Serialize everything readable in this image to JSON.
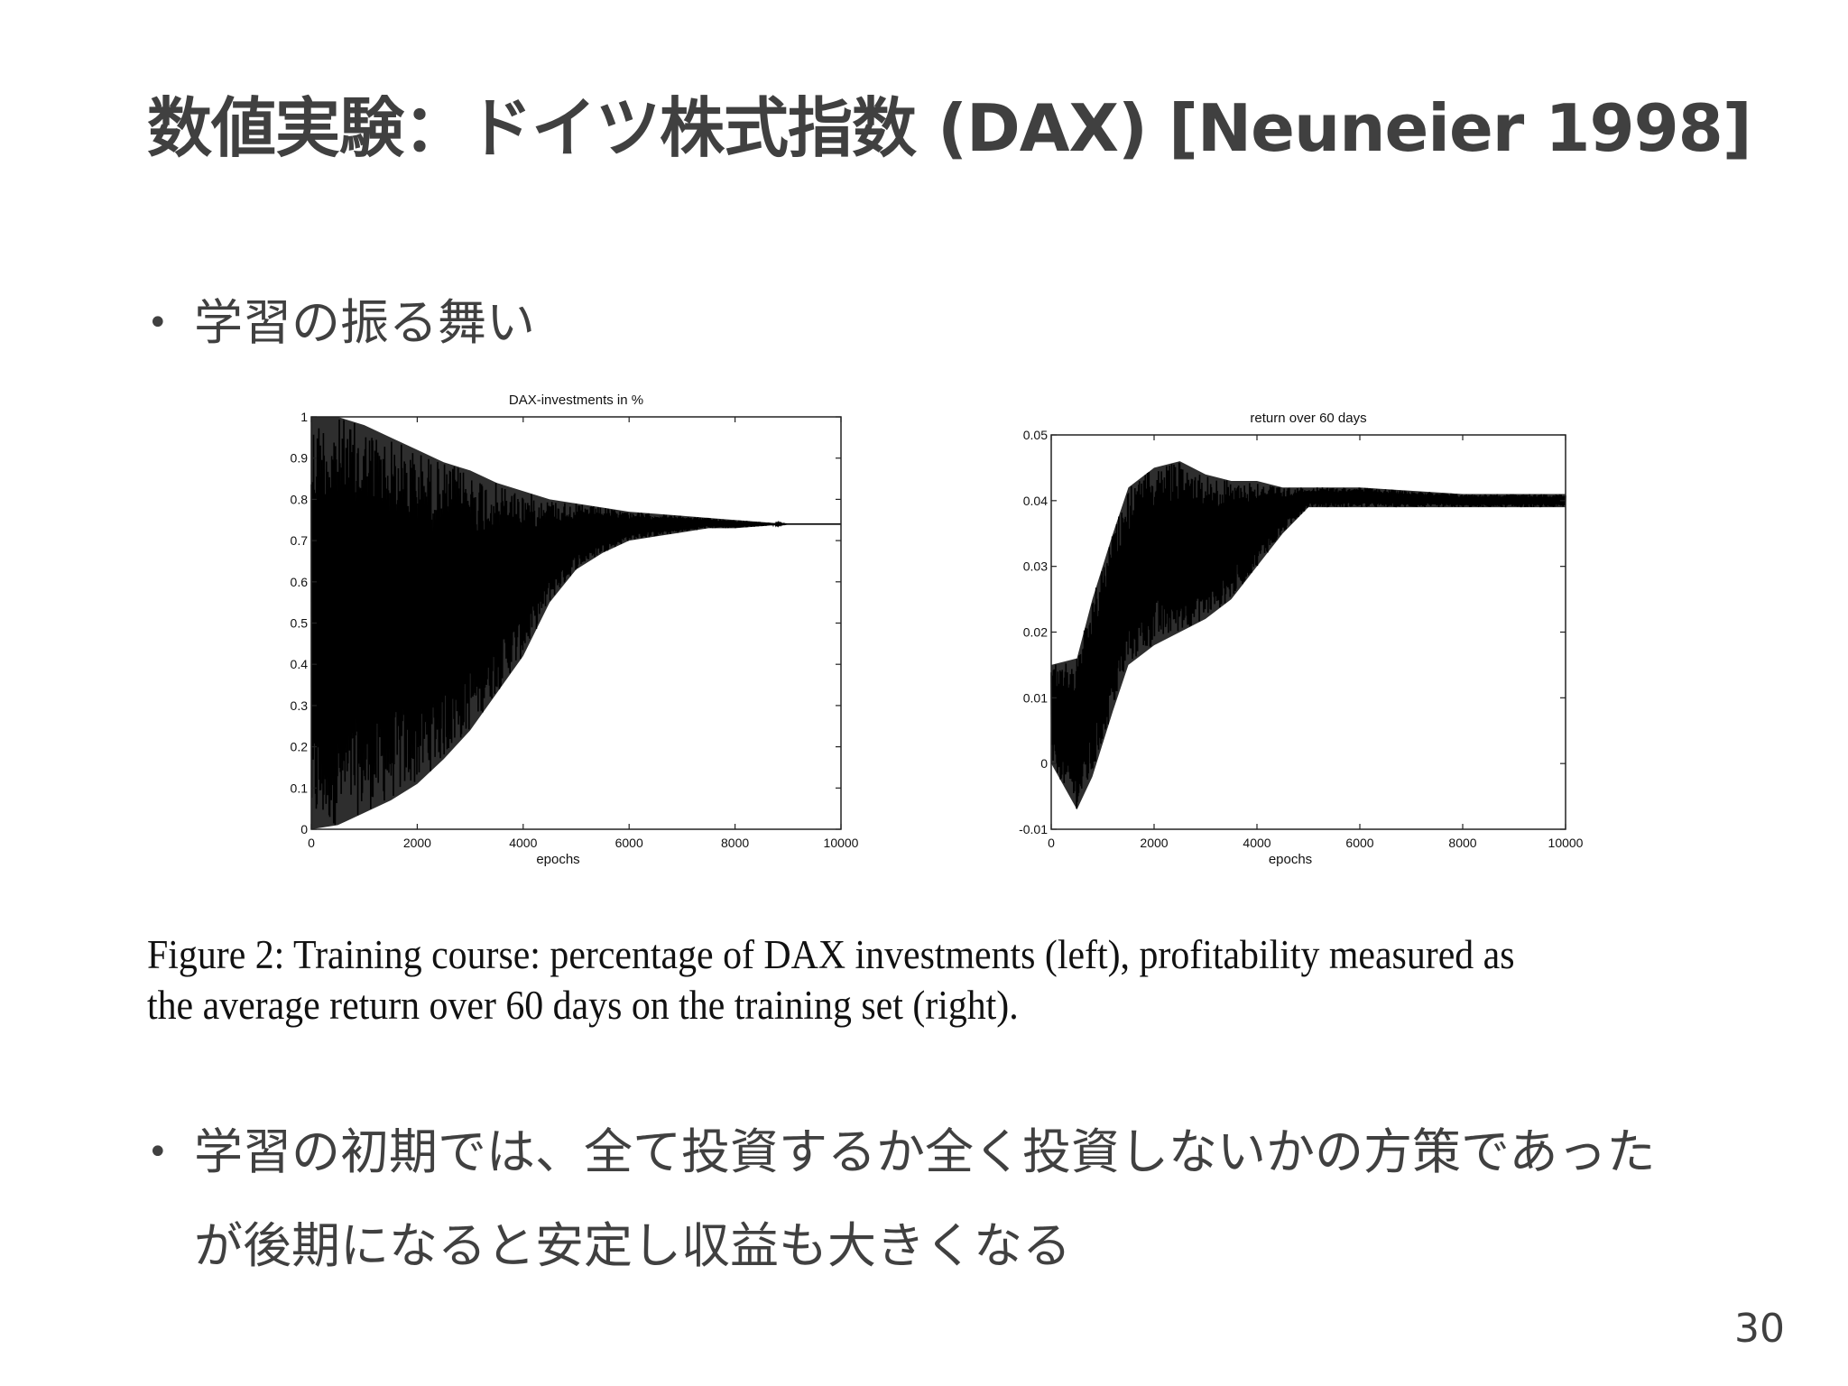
{
  "slide": {
    "title": "数値実験：ドイツ株式指数 (DAX) [Neuneier 1998]",
    "bullets": [
      "学習の振る舞い",
      "学習の初期では、全て投資するか全く投資しないかの方策であった",
      "が後期になると安定し収益も大きくなる"
    ],
    "bullet_marker": "•",
    "caption_line1": "Figure 2: Training course: percentage of DAX investments (left), profitability measured as",
    "caption_line2": "the average return over 60 days on the training set (right).",
    "page_number": "30"
  },
  "chart_data": [
    {
      "type": "line",
      "title": "DAX-investments in %",
      "xlabel": "epochs",
      "ylabel": "",
      "xlim": [
        0,
        10000
      ],
      "ylim": [
        0,
        1
      ],
      "xticks": [
        "0",
        "2000",
        "4000",
        "6000",
        "8000",
        "10000"
      ],
      "yticks": [
        "0",
        "0.1",
        "0.2",
        "0.3",
        "0.4",
        "0.5",
        "0.6",
        "0.7",
        "0.8",
        "0.9",
        "1"
      ],
      "grid": false,
      "envelope_upper": {
        "x": [
          0,
          500,
          1000,
          1500,
          2000,
          2500,
          3000,
          3500,
          4000,
          4500,
          5000,
          5500,
          6000,
          6500,
          7000,
          7500,
          8000,
          8500,
          9000,
          9500,
          10000
        ],
        "y": [
          1.0,
          1.0,
          0.98,
          0.95,
          0.92,
          0.89,
          0.87,
          0.84,
          0.82,
          0.8,
          0.79,
          0.78,
          0.77,
          0.765,
          0.76,
          0.755,
          0.75,
          0.745,
          0.74,
          0.74,
          0.74
        ]
      },
      "envelope_lower": {
        "x": [
          0,
          500,
          1000,
          1500,
          2000,
          2500,
          3000,
          3500,
          4000,
          4500,
          5000,
          5500,
          6000,
          6500,
          7000,
          7500,
          8000,
          8500,
          9000,
          9500,
          10000
        ],
        "y": [
          0.0,
          0.01,
          0.04,
          0.07,
          0.11,
          0.17,
          0.24,
          0.33,
          0.42,
          0.55,
          0.63,
          0.67,
          0.7,
          0.71,
          0.72,
          0.73,
          0.73,
          0.735,
          0.74,
          0.74,
          0.74
        ]
      }
    },
    {
      "type": "line",
      "title": "return over  60 days",
      "xlabel": "epochs",
      "ylabel": "",
      "xlim": [
        0,
        10000
      ],
      "ylim": [
        -0.01,
        0.05
      ],
      "xticks": [
        "0",
        "2000",
        "4000",
        "6000",
        "8000",
        "10000"
      ],
      "yticks": [
        "-0.01",
        "0",
        "0.01",
        "0.02",
        "0.03",
        "0.04",
        "0.05"
      ],
      "grid": false,
      "envelope_upper": {
        "x": [
          0,
          500,
          800,
          1200,
          1500,
          2000,
          2500,
          3000,
          3500,
          4000,
          4500,
          5000,
          6000,
          7000,
          8000,
          9000,
          10000
        ],
        "y": [
          0.015,
          0.016,
          0.025,
          0.035,
          0.042,
          0.045,
          0.046,
          0.044,
          0.043,
          0.043,
          0.042,
          0.042,
          0.042,
          0.0415,
          0.041,
          0.041,
          0.041
        ]
      },
      "envelope_lower": {
        "x": [
          0,
          500,
          800,
          1200,
          1500,
          2000,
          2500,
          3000,
          3500,
          4000,
          4500,
          5000,
          6000,
          7000,
          8000,
          9000,
          10000
        ],
        "y": [
          0.0,
          -0.007,
          -0.002,
          0.008,
          0.015,
          0.018,
          0.02,
          0.022,
          0.025,
          0.03,
          0.035,
          0.039,
          0.039,
          0.039,
          0.039,
          0.039,
          0.039
        ]
      }
    }
  ]
}
